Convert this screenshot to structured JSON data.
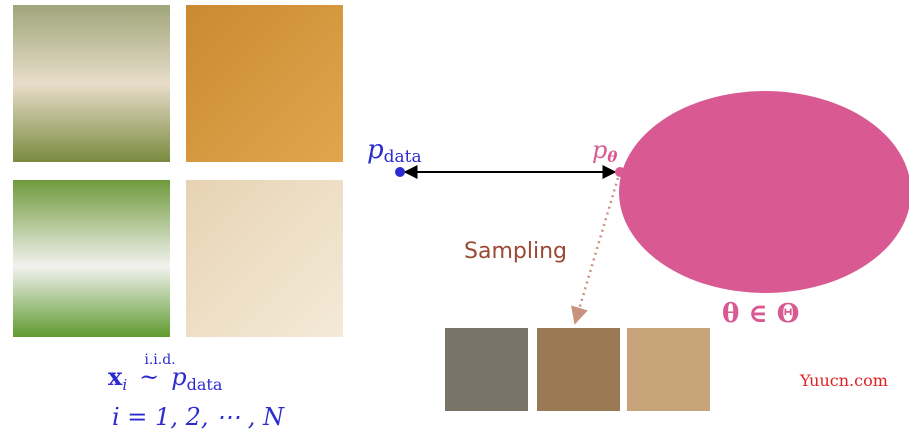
{
  "labels": {
    "p_data": {
      "base": "p",
      "sub": "data"
    },
    "p_theta": {
      "base": "p",
      "sub": "θ"
    },
    "sampling": "Sampling",
    "param_space": "θ ∈ Θ"
  },
  "caption": {
    "line1": {
      "var": "x",
      "var_sub": "i",
      "over": "i.i.d.",
      "rel": "~",
      "dist": "p",
      "dist_sub": "data"
    },
    "line2": "i = 1, 2, ⋯ , N"
  },
  "watermark": "Yuucn.com"
}
